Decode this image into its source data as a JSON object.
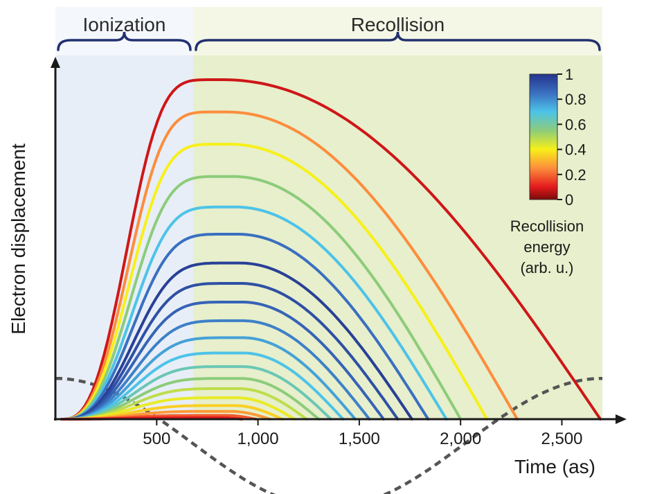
{
  "chart_data": {
    "type": "line",
    "xlabel": "Time (as)",
    "ylabel": "Electron displacement",
    "xlim": [
      0,
      2700
    ],
    "ylim": [
      -0.26,
      1.0
    ],
    "x_ticks": [
      {
        "value": 500,
        "label": "500"
      },
      {
        "value": 1000,
        "label": "1,000"
      },
      {
        "value": 1500,
        "label": "1,500"
      },
      {
        "value": 2000,
        "label": "2,000"
      },
      {
        "value": 2500,
        "label": "2,500"
      }
    ],
    "regions": [
      {
        "name": "Ionization",
        "x_start": 0,
        "x_end": 680,
        "color": "#e8eef7"
      },
      {
        "name": "Recollision",
        "x_start": 680,
        "x_end": 2700,
        "color": "#e7efcc"
      }
    ],
    "colorbar": {
      "title_lines": [
        "Recollision",
        "energy",
        "(arb. u.)"
      ],
      "ticks": [
        {
          "value": 1,
          "label": "1"
        },
        {
          "value": 0.8,
          "label": "0.8"
        },
        {
          "value": 0.6,
          "label": "0.6"
        },
        {
          "value": 0.4,
          "label": "0.4"
        },
        {
          "value": 0.2,
          "label": "0.2"
        },
        {
          "value": 0,
          "label": "0"
        }
      ],
      "stops": [
        {
          "value": 0,
          "color": "#7a0a0a"
        },
        {
          "value": 0.1,
          "color": "#e31a1c"
        },
        {
          "value": 0.25,
          "color": "#fd8d3c"
        },
        {
          "value": 0.4,
          "color": "#f7f018"
        },
        {
          "value": 0.55,
          "color": "#8ccc7a"
        },
        {
          "value": 0.7,
          "color": "#4dc3e8"
        },
        {
          "value": 0.85,
          "color": "#3a6fc0"
        },
        {
          "value": 1.0,
          "color": "#24348c"
        }
      ]
    },
    "field": {
      "name": "laser field (dashed)",
      "style": "dashed",
      "color": "#555555",
      "amplitude": 0.19,
      "offset": -0.07,
      "period": 2700,
      "peak_x": 0
    },
    "trajectories": {
      "shape": "rise_then_fall",
      "onset_x": 30,
      "series": [
        {
          "peak": 1.0,
          "peak_x": 820,
          "end_x": 2690,
          "energy": 0.08
        },
        {
          "peak": 0.905,
          "peak_x": 840,
          "end_x": 2280,
          "energy": 0.25
        },
        {
          "peak": 0.81,
          "peak_x": 855,
          "end_x": 2130,
          "energy": 0.4
        },
        {
          "peak": 0.715,
          "peak_x": 870,
          "end_x": 2000,
          "energy": 0.55
        },
        {
          "peak": 0.625,
          "peak_x": 885,
          "end_x": 1930,
          "energy": 0.7
        },
        {
          "peak": 0.545,
          "peak_x": 895,
          "end_x": 1840,
          "energy": 0.85
        },
        {
          "peak": 0.46,
          "peak_x": 905,
          "end_x": 1760,
          "energy": 0.97
        },
        {
          "peak": 0.4,
          "peak_x": 910,
          "end_x": 1690,
          "energy": 0.93
        },
        {
          "peak": 0.345,
          "peak_x": 915,
          "end_x": 1620,
          "energy": 0.88
        },
        {
          "peak": 0.29,
          "peak_x": 920,
          "end_x": 1550,
          "energy": 0.82
        },
        {
          "peak": 0.24,
          "peak_x": 920,
          "end_x": 1480,
          "energy": 0.76
        },
        {
          "peak": 0.195,
          "peak_x": 920,
          "end_x": 1420,
          "energy": 0.7
        },
        {
          "peak": 0.155,
          "peak_x": 915,
          "end_x": 1360,
          "energy": 0.63
        },
        {
          "peak": 0.12,
          "peak_x": 910,
          "end_x": 1300,
          "energy": 0.55
        },
        {
          "peak": 0.09,
          "peak_x": 900,
          "end_x": 1240,
          "energy": 0.48
        },
        {
          "peak": 0.063,
          "peak_x": 890,
          "end_x": 1180,
          "energy": 0.42
        },
        {
          "peak": 0.04,
          "peak_x": 880,
          "end_x": 1120,
          "energy": 0.35
        },
        {
          "peak": 0.023,
          "peak_x": 860,
          "end_x": 1060,
          "energy": 0.27
        },
        {
          "peak": 0.011,
          "peak_x": 840,
          "end_x": 990,
          "energy": 0.18
        },
        {
          "peak": 0.004,
          "peak_x": 810,
          "end_x": 920,
          "energy": 0.1
        }
      ]
    }
  }
}
